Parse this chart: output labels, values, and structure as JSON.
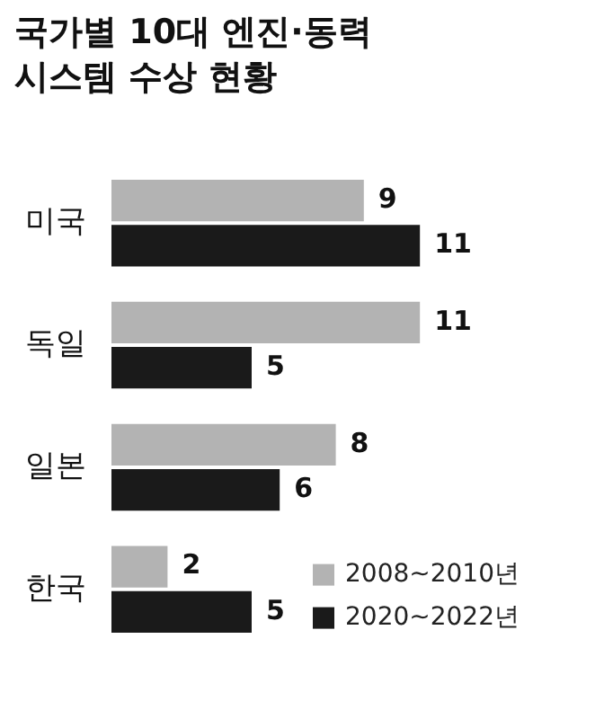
{
  "chart_data": {
    "type": "bar",
    "orientation": "horizontal",
    "title": "국가별 10대 엔진·동력시스템 수상 현황",
    "categories": [
      "미국",
      "독일",
      "일본",
      "한국"
    ],
    "series": [
      {
        "name": "2008~2010년",
        "color": "#b3b3b3",
        "values": [
          9,
          11,
          8,
          2
        ]
      },
      {
        "name": "2020~2022년",
        "color": "#1a1a1a",
        "values": [
          11,
          5,
          6,
          5
        ]
      }
    ],
    "data_labels": true,
    "legend": "bottom right",
    "grid": false,
    "tick_labels": "y"
  }
}
